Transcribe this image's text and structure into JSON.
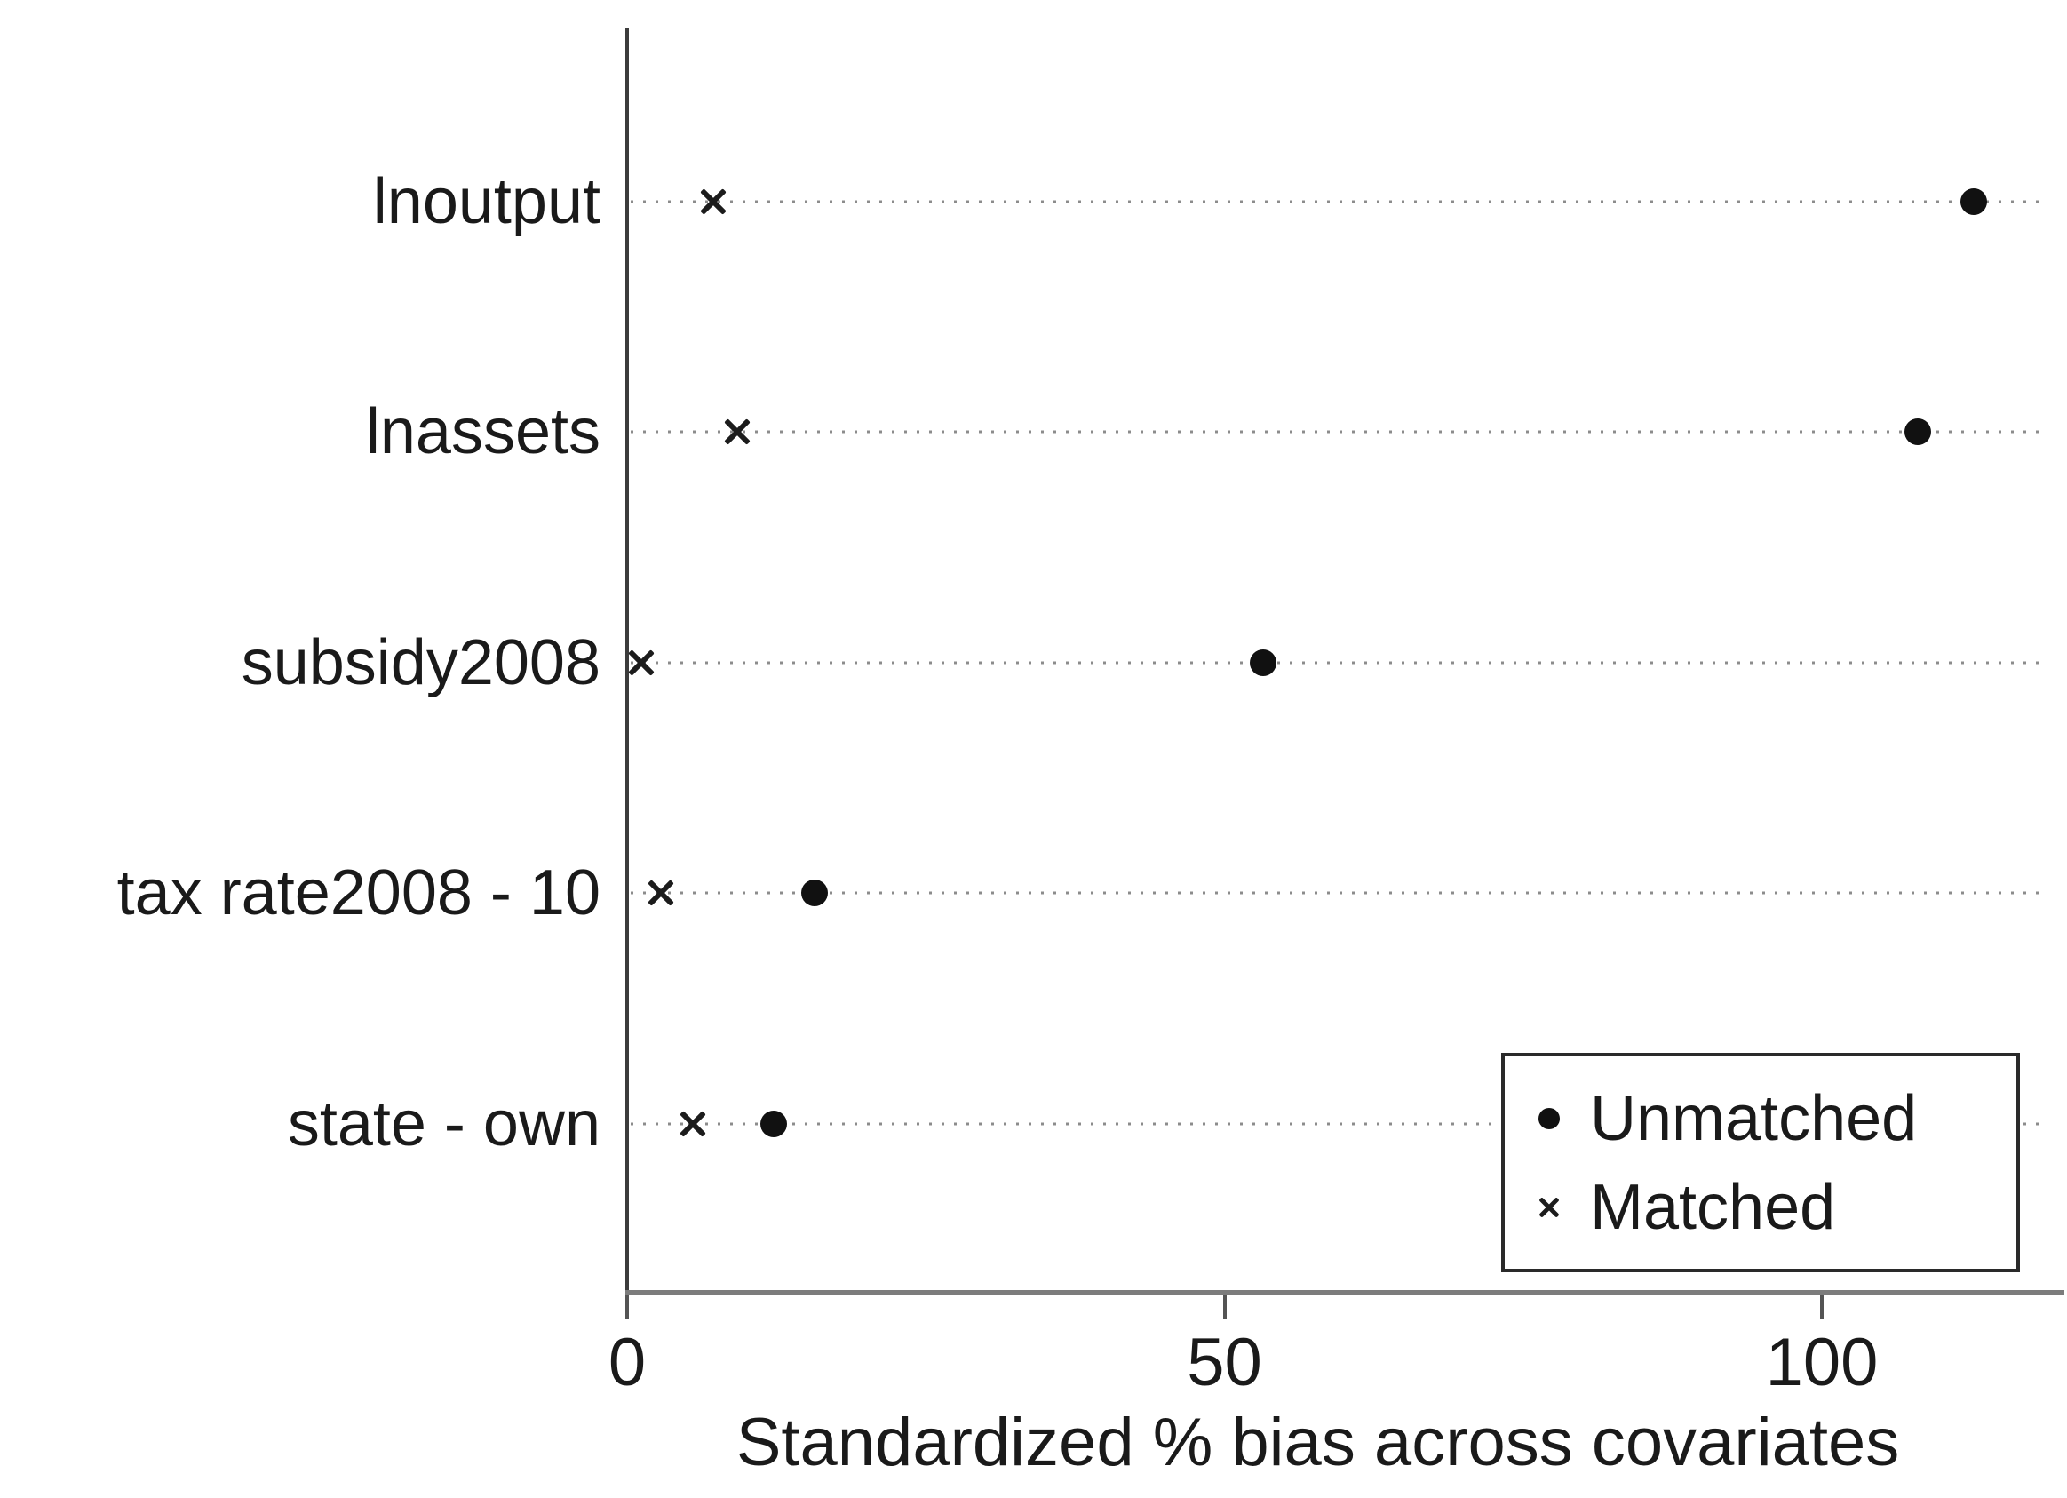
{
  "chart_data": {
    "type": "scatter",
    "orientation": "horizontal-dot-plot",
    "title": "",
    "xlabel": "Standardized % bias across covariates",
    "ylabel": "",
    "categories": [
      "lnoutput",
      "lnassets",
      "subsidy2008",
      "tax rate2008 - 10",
      "state - own"
    ],
    "series": [
      {
        "name": "Unmatched",
        "marker": "dot",
        "values": [
          112.7,
          108.0,
          53.2,
          15.7,
          12.3
        ]
      },
      {
        "name": "Matched",
        "marker": "cross",
        "values": [
          7.2,
          9.2,
          1.2,
          2.8,
          5.5
        ]
      }
    ],
    "x_ticks": [
      0,
      50,
      100
    ],
    "xlim": [
      0,
      119
    ],
    "grid": "horizontal dotted guide line per category",
    "legend_position": "inside bottom-right",
    "colors": {
      "marker": "#111111",
      "y_axis": "#3c3c3c",
      "x_axis": "#7c7c7c",
      "grid_dots": "#8c8c8c",
      "text": "#1a1a1a",
      "background": "#ffffff"
    }
  },
  "legend": {
    "items": [
      {
        "symbol": "dot",
        "label": "Unmatched"
      },
      {
        "symbol": "cross",
        "label": "Matched"
      }
    ]
  }
}
